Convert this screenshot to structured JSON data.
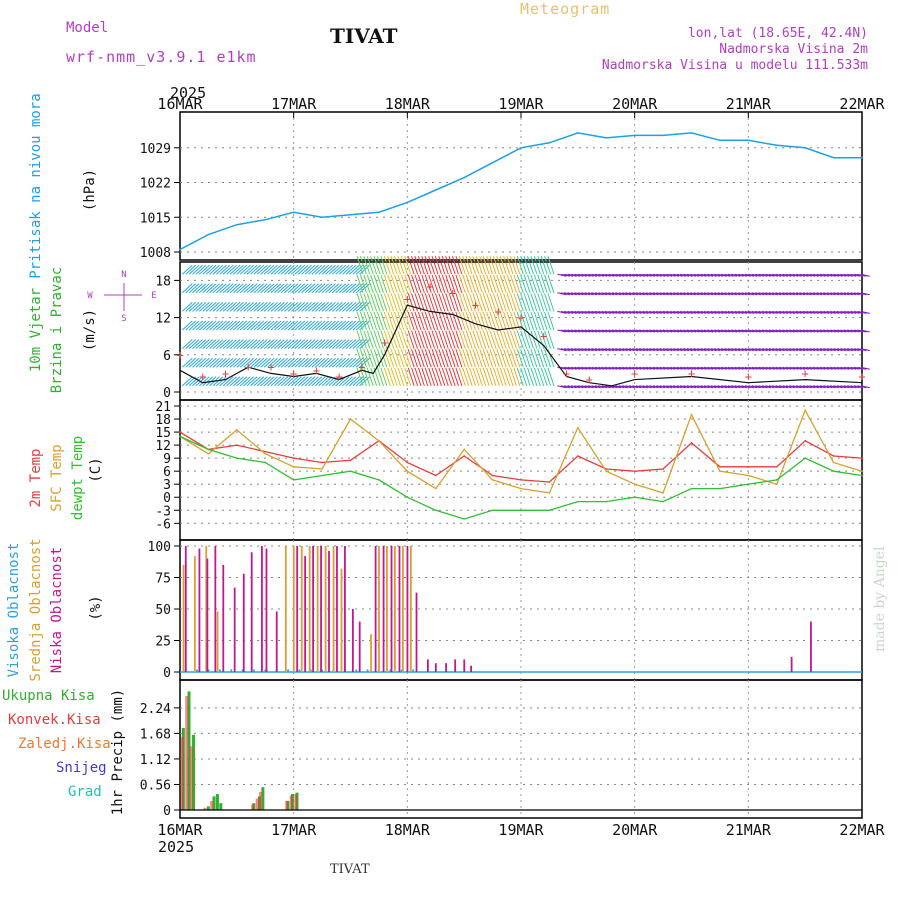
{
  "header": {
    "model_label": "Model",
    "model_name": "wrf-nmm_v3.9.1 e1km",
    "title": "TIVAT",
    "subtitle": "Meteogram",
    "lonlat": "lon,lat (18.65E, 42.4N)",
    "altitude": "Nadmorska Visina 2m",
    "model_altitude": "Nadmorska Visina u modelu 111.533m",
    "year_top": "2025",
    "year_bottom": "2025",
    "footer_station": "TIVAT",
    "credit": "made by Angel"
  },
  "colors": {
    "pressure": "#1ea0e6",
    "temp2m": "#e83c3c",
    "sfc_temp": "#d8a030",
    "dewpt": "#30c030",
    "cloud_high": "#30a0e0",
    "cloud_mid": "#d8a030",
    "cloud_low": "#c01890",
    "rain_total": "#30b030",
    "rain_conv": "#e83c3c",
    "rain_frozen": "#f07830",
    "snow": "#4040d0",
    "hail": "#20c0b0",
    "wind_axis_label": "#30b030",
    "panel_label_purple": "#b040c0"
  },
  "chart_data": [
    {
      "type": "line",
      "panel": "pressure",
      "ylabel_lines": [
        "Pritisak na nivou mora",
        "(hPa)"
      ],
      "yticks": [
        1008,
        1015,
        1022,
        1029
      ],
      "ylim": [
        1008,
        1035
      ],
      "x_ticks": [
        "16MAR",
        "17MAR",
        "18MAR",
        "19MAR",
        "20MAR",
        "21MAR",
        "22MAR"
      ],
      "x_range_days": [
        0,
        6
      ],
      "series": [
        {
          "x": [
            0,
            0.25,
            0.5,
            0.75,
            1.0,
            1.25,
            1.5,
            1.75,
            2.0,
            2.25,
            2.5,
            2.75,
            3.0,
            3.25,
            3.5,
            3.75,
            4.0,
            4.25,
            4.5,
            4.75,
            5.0,
            5.25,
            5.5,
            5.75,
            6.0
          ],
          "values": [
            1008.5,
            1011.5,
            1013.5,
            1014.5,
            1016,
            1015,
            1015.5,
            1016,
            1018,
            1020.5,
            1023,
            1026,
            1029,
            1030,
            1032,
            1031,
            1031.5,
            1031.5,
            1032,
            1030.5,
            1030.5,
            1029.5,
            1029,
            1027,
            1027
          ]
        }
      ]
    },
    {
      "type": "line",
      "panel": "wind",
      "ylabel_lines": [
        "10m Vjetar",
        "Brzina i Pravac",
        "(m/s)"
      ],
      "compass": [
        "N",
        "W",
        "E",
        "S"
      ],
      "yticks": [
        0,
        6,
        12,
        18
      ],
      "ylim": [
        0,
        20
      ],
      "series": [
        {
          "name": "speed",
          "x": [
            0,
            0.2,
            0.4,
            0.6,
            0.8,
            1.0,
            1.2,
            1.4,
            1.6,
            1.7,
            1.8,
            1.9,
            2.0,
            2.2,
            2.4,
            2.6,
            2.8,
            3.0,
            3.2,
            3.4,
            3.6,
            3.8,
            4.0,
            4.5,
            5.0,
            5.5,
            6.0
          ],
          "values": [
            3.5,
            1.5,
            2.0,
            4.0,
            3.0,
            2.5,
            3.0,
            2.0,
            3.5,
            3.0,
            6.0,
            10.0,
            14.0,
            13.0,
            12.5,
            11.0,
            10.0,
            10.5,
            7.5,
            2.5,
            1.5,
            1.0,
            2.0,
            2.5,
            1.5,
            2.0,
            1.5
          ]
        }
      ],
      "gust_series": [
        {
          "name": "gust",
          "x": [
            0,
            0.2,
            0.4,
            0.6,
            0.8,
            1.0,
            1.2,
            1.4,
            1.6,
            1.8,
            2.0,
            2.2,
            2.4,
            2.6,
            2.8,
            3.0,
            3.2,
            3.4,
            3.6,
            4.0,
            4.5,
            5.0,
            5.5,
            6.0
          ],
          "values": [
            6,
            2.5,
            3,
            4,
            4,
            3,
            3.5,
            2.5,
            4,
            8,
            15,
            17,
            16,
            14,
            13,
            12,
            9,
            3,
            2,
            3,
            3,
            2.5,
            3,
            2.5
          ]
        }
      ]
    },
    {
      "type": "line",
      "panel": "temperature",
      "ylabel_lines": [
        "2m Temp",
        "SFC Temp",
        "dewpt Temp",
        "(C)"
      ],
      "yticks": [
        -6,
        -3,
        0,
        3,
        6,
        9,
        12,
        15,
        18,
        21
      ],
      "ylim": [
        -8,
        21
      ],
      "series": [
        {
          "name": "2m Temp",
          "x": [
            0,
            0.25,
            0.5,
            0.75,
            1.0,
            1.25,
            1.5,
            1.75,
            2.0,
            2.25,
            2.5,
            2.75,
            3.0,
            3.25,
            3.5,
            3.75,
            4.0,
            4.25,
            4.5,
            4.75,
            5.0,
            5.25,
            5.5,
            5.75,
            6.0
          ],
          "values": [
            15,
            11,
            12,
            10.5,
            9,
            8,
            8.5,
            13,
            8,
            5,
            9.5,
            5,
            4,
            3.5,
            9.5,
            6.5,
            6,
            6.5,
            12.5,
            7,
            7,
            7,
            13,
            9.5,
            9
          ]
        },
        {
          "name": "SFC Temp",
          "x": [
            0,
            0.25,
            0.5,
            0.75,
            1.0,
            1.25,
            1.5,
            1.75,
            2.0,
            2.25,
            2.5,
            2.75,
            3.0,
            3.25,
            3.5,
            3.75,
            4.0,
            4.25,
            4.5,
            4.75,
            5.0,
            5.25,
            5.5,
            5.75,
            6.0
          ],
          "values": [
            14,
            10,
            15.5,
            10,
            7,
            6.5,
            18,
            13,
            6,
            2,
            11,
            4,
            2,
            1,
            16,
            6,
            3,
            1,
            19,
            6,
            5,
            3,
            20,
            8,
            6
          ]
        },
        {
          "name": "dewpt Temp",
          "x": [
            0,
            0.25,
            0.5,
            0.75,
            1.0,
            1.25,
            1.5,
            1.75,
            2.0,
            2.25,
            2.5,
            2.75,
            3.0,
            3.25,
            3.5,
            3.75,
            4.0,
            4.25,
            4.5,
            4.75,
            5.0,
            5.25,
            5.5,
            5.75,
            6.0
          ],
          "values": [
            14,
            11,
            9,
            8,
            4,
            5,
            6,
            4,
            0,
            -3,
            -5,
            -3,
            -3,
            -3,
            -1,
            -1,
            0,
            -1,
            2,
            2,
            3,
            4,
            9,
            6,
            5
          ]
        }
      ]
    },
    {
      "type": "bar",
      "panel": "clouds",
      "ylabel_lines": [
        "Visoka Oblacnost",
        "Srednja Oblacnost",
        "Niska Oblacnost",
        "(%)"
      ],
      "yticks": [
        0,
        25,
        50,
        75,
        100
      ],
      "ylim": [
        0,
        100
      ],
      "series": [
        {
          "name": "Visoka Oblacnost",
          "x": [
            0.05,
            0.15,
            0.25,
            0.35,
            0.45,
            0.55,
            0.65,
            0.75,
            0.85,
            0.95,
            1.05,
            1.15,
            1.25,
            1.35,
            1.45,
            1.55,
            1.65,
            1.75,
            1.85,
            1.95,
            2.05
          ],
          "values": [
            2,
            2,
            2,
            2,
            2,
            2,
            2,
            2,
            2,
            2,
            2,
            2,
            2,
            2,
            2,
            2,
            2,
            2,
            2,
            2,
            2
          ]
        },
        {
          "name": "Srednja Oblacnost",
          "x": [
            0.03,
            0.13,
            0.23,
            0.33,
            0.93,
            1.0,
            1.07,
            1.14,
            1.21,
            1.28,
            1.35,
            1.42,
            1.68,
            1.75,
            1.82,
            1.89,
            1.96,
            2.03
          ],
          "values": [
            85,
            92,
            100,
            48,
            100,
            100,
            100,
            100,
            100,
            100,
            100,
            82,
            30,
            100,
            100,
            100,
            100,
            100
          ]
        },
        {
          "name": "Niska Oblacnost",
          "x": [
            0.05,
            0.17,
            0.24,
            0.31,
            0.38,
            0.48,
            0.56,
            0.63,
            0.72,
            0.76,
            0.85,
            1.03,
            1.1,
            1.17,
            1.24,
            1.31,
            1.38,
            1.45,
            1.52,
            1.58,
            1.72,
            1.79,
            1.86,
            1.93,
            2.0,
            2.08,
            2.18,
            2.25,
            2.34,
            2.42,
            2.5,
            2.56,
            5.38,
            5.55
          ],
          "values": [
            100,
            98,
            90,
            100,
            85,
            67,
            78,
            95,
            100,
            98,
            48,
            100,
            92,
            100,
            100,
            96,
            100,
            100,
            50,
            40,
            100,
            100,
            100,
            100,
            100,
            63,
            10,
            7,
            7,
            10,
            10,
            5,
            12,
            40
          ]
        }
      ]
    },
    {
      "type": "bar",
      "panel": "precip",
      "ylabel_lines": [
        "1hr Precip (mm)"
      ],
      "legend": [
        "Ukupna Kisa",
        "Konvek.Kisa",
        "Zaledj.Kisa",
        "Snijeg",
        "Grad"
      ],
      "yticks": [
        0,
        0.56,
        1.12,
        1.68,
        2.24
      ],
      "ylim": [
        0,
        2.72
      ],
      "series": [
        {
          "name": "Ukupna Kisa",
          "x": [
            0.03,
            0.08,
            0.12,
            0.25,
            0.3,
            0.33,
            0.36,
            0.65,
            0.7,
            0.73,
            0.95,
            0.99,
            1.03
          ],
          "values": [
            1.8,
            2.6,
            1.65,
            0.08,
            0.3,
            0.35,
            0.15,
            0.15,
            0.3,
            0.5,
            0.2,
            0.35,
            0.38
          ]
        },
        {
          "name": "Konvek.Kisa",
          "x": [
            0.02,
            0.06,
            0.1,
            0.22,
            0.28,
            0.64,
            0.68,
            0.71,
            0.94,
            0.98,
            1.02
          ],
          "values": [
            1.6,
            2.5,
            1.4,
            0.05,
            0.2,
            0.12,
            0.25,
            0.4,
            0.2,
            0.32,
            0.35
          ]
        }
      ]
    }
  ]
}
